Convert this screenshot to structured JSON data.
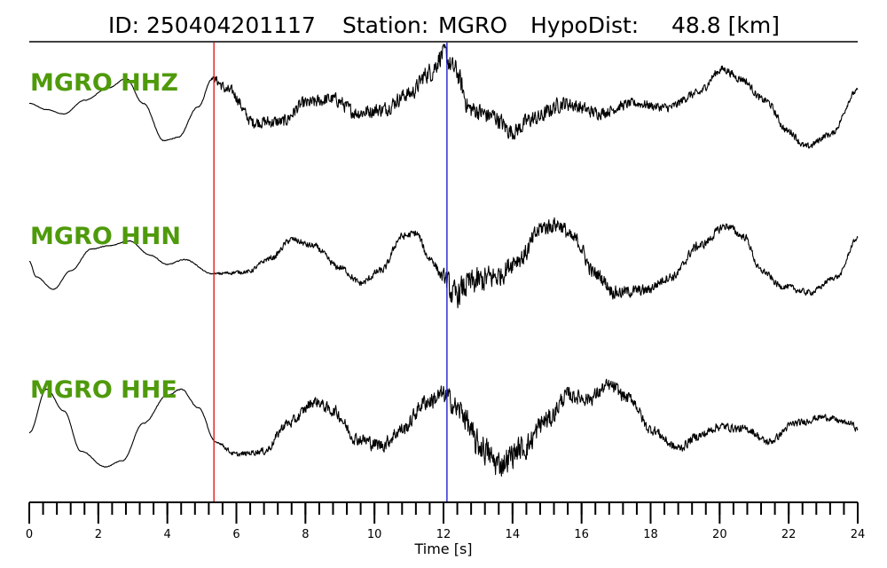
{
  "colors": {
    "trace": "#000000",
    "label": "#4f9a0b",
    "p_pick": "#e31a1c",
    "s_pick": "#1f1fd0"
  },
  "chart_data": {
    "type": "line",
    "title": {
      "id_label": "ID:",
      "id_value": "250404201117",
      "station_label": "Station:",
      "station_value": "MGRO",
      "dist_label": "HypoDist:",
      "dist_value": "48.8 [km]"
    },
    "xlabel": "Time [s]",
    "xlim": [
      0,
      24
    ],
    "xticks": [
      0,
      2,
      4,
      6,
      8,
      10,
      12,
      14,
      16,
      18,
      20,
      22,
      24
    ],
    "minor_tick_step": 0.4,
    "grid": false,
    "picks": [
      {
        "name": "P",
        "time": 5.35,
        "color": "#e31a1c"
      },
      {
        "name": "S",
        "time": 12.1,
        "color": "#1f1fd0"
      }
    ],
    "series": [
      {
        "name": "MGRO HHZ",
        "color": "#000000",
        "trend": [
          [
            0,
            0.05
          ],
          [
            0.5,
            -0.05
          ],
          [
            1.0,
            -0.12
          ],
          [
            1.6,
            0.1
          ],
          [
            2.3,
            0.3
          ],
          [
            2.8,
            0.45
          ],
          [
            3.3,
            0.05
          ],
          [
            3.9,
            -0.55
          ],
          [
            4.3,
            -0.5
          ],
          [
            4.9,
            0.0
          ],
          [
            5.3,
            0.45
          ],
          [
            5.8,
            0.25
          ],
          [
            6.5,
            -0.25
          ],
          [
            7.3,
            -0.25
          ],
          [
            8.0,
            0.05
          ],
          [
            8.8,
            0.12
          ],
          [
            9.5,
            -0.1
          ],
          [
            10.2,
            -0.05
          ],
          [
            11.0,
            0.2
          ],
          [
            11.6,
            0.55
          ],
          [
            12.0,
            0.85
          ],
          [
            12.3,
            0.6
          ],
          [
            12.8,
            -0.05
          ],
          [
            13.4,
            -0.15
          ],
          [
            14.0,
            -0.4
          ],
          [
            14.6,
            -0.2
          ],
          [
            15.5,
            0.05
          ],
          [
            16.5,
            -0.1
          ],
          [
            17.5,
            0.05
          ],
          [
            18.5,
            -0.02
          ],
          [
            19.3,
            0.2
          ],
          [
            20.1,
            0.6
          ],
          [
            20.6,
            0.45
          ],
          [
            21.3,
            0.1
          ],
          [
            22.0,
            -0.4
          ],
          [
            22.5,
            -0.65
          ],
          [
            23.2,
            -0.45
          ],
          [
            24,
            0.25
          ]
        ],
        "noise": [
          [
            0,
            0.005
          ],
          [
            5.2,
            0.01
          ],
          [
            5.5,
            0.12
          ],
          [
            7.5,
            0.14
          ],
          [
            11.0,
            0.16
          ],
          [
            11.8,
            0.22
          ],
          [
            12.3,
            0.24
          ],
          [
            13.0,
            0.2
          ],
          [
            14.5,
            0.18
          ],
          [
            18.0,
            0.1
          ],
          [
            22.0,
            0.08
          ],
          [
            24,
            0.06
          ]
        ]
      },
      {
        "name": "MGRO HHN",
        "color": "#000000",
        "trend": [
          [
            0,
            0.05
          ],
          [
            0.2,
            -0.2
          ],
          [
            0.7,
            -0.4
          ],
          [
            1.2,
            -0.1
          ],
          [
            1.8,
            0.25
          ],
          [
            2.3,
            0.3
          ],
          [
            2.9,
            0.38
          ],
          [
            3.5,
            0.15
          ],
          [
            4.0,
            0.0
          ],
          [
            4.5,
            0.08
          ],
          [
            5.3,
            -0.15
          ],
          [
            6.3,
            -0.12
          ],
          [
            7.0,
            0.1
          ],
          [
            7.6,
            0.4
          ],
          [
            8.2,
            0.3
          ],
          [
            9.0,
            -0.05
          ],
          [
            9.6,
            -0.3
          ],
          [
            10.2,
            -0.1
          ],
          [
            10.8,
            0.45
          ],
          [
            11.2,
            0.5
          ],
          [
            11.6,
            0.1
          ],
          [
            12.0,
            -0.2
          ],
          [
            12.3,
            -0.5
          ],
          [
            12.8,
            -0.3
          ],
          [
            13.5,
            -0.2
          ],
          [
            14.2,
            0.1
          ],
          [
            14.9,
            0.6
          ],
          [
            15.3,
            0.65
          ],
          [
            15.8,
            0.4
          ],
          [
            16.4,
            -0.15
          ],
          [
            17.0,
            -0.45
          ],
          [
            17.8,
            -0.42
          ],
          [
            18.6,
            -0.2
          ],
          [
            19.4,
            0.3
          ],
          [
            20.2,
            0.62
          ],
          [
            20.7,
            0.45
          ],
          [
            21.2,
            -0.1
          ],
          [
            21.8,
            -0.35
          ],
          [
            22.6,
            -0.45
          ],
          [
            23.4,
            -0.2
          ],
          [
            24,
            0.42
          ]
        ],
        "noise": [
          [
            0,
            0.005
          ],
          [
            5.3,
            0.01
          ],
          [
            5.6,
            0.04
          ],
          [
            8.0,
            0.07
          ],
          [
            11.0,
            0.08
          ],
          [
            11.9,
            0.1
          ],
          [
            12.2,
            0.3
          ],
          [
            13.0,
            0.3
          ],
          [
            14.0,
            0.22
          ],
          [
            16.0,
            0.16
          ],
          [
            19.0,
            0.1
          ],
          [
            22.0,
            0.07
          ],
          [
            24,
            0.05
          ]
        ]
      },
      {
        "name": "MGRO HHE",
        "color": "#000000",
        "trend": [
          [
            0,
            -0.25
          ],
          [
            0.5,
            0.45
          ],
          [
            1.0,
            0.1
          ],
          [
            1.5,
            -0.55
          ],
          [
            2.2,
            -0.8
          ],
          [
            2.7,
            -0.7
          ],
          [
            3.3,
            -0.1
          ],
          [
            4.0,
            0.35
          ],
          [
            4.4,
            0.45
          ],
          [
            4.9,
            0.15
          ],
          [
            5.4,
            -0.4
          ],
          [
            6.0,
            -0.6
          ],
          [
            6.8,
            -0.55
          ],
          [
            7.5,
            -0.1
          ],
          [
            8.3,
            0.25
          ],
          [
            8.8,
            0.1
          ],
          [
            9.5,
            -0.35
          ],
          [
            10.2,
            -0.45
          ],
          [
            10.8,
            -0.2
          ],
          [
            11.5,
            0.25
          ],
          [
            12.0,
            0.35
          ],
          [
            12.5,
            0.1
          ],
          [
            13.0,
            -0.45
          ],
          [
            13.6,
            -0.75
          ],
          [
            14.3,
            -0.5
          ],
          [
            15.0,
            -0.05
          ],
          [
            15.6,
            0.35
          ],
          [
            16.2,
            0.3
          ],
          [
            16.8,
            0.5
          ],
          [
            17.4,
            0.3
          ],
          [
            18.0,
            -0.2
          ],
          [
            18.8,
            -0.5
          ],
          [
            19.4,
            -0.3
          ],
          [
            20.0,
            -0.15
          ],
          [
            20.8,
            -0.2
          ],
          [
            21.4,
            -0.4
          ],
          [
            22.2,
            -0.1
          ],
          [
            23.0,
            0.0
          ],
          [
            23.8,
            -0.1
          ],
          [
            24,
            -0.2
          ]
        ],
        "noise": [
          [
            0,
            0.005
          ],
          [
            5.3,
            0.01
          ],
          [
            5.8,
            0.05
          ],
          [
            8.0,
            0.12
          ],
          [
            11.0,
            0.16
          ],
          [
            12.0,
            0.22
          ],
          [
            13.0,
            0.32
          ],
          [
            14.2,
            0.28
          ],
          [
            16.0,
            0.16
          ],
          [
            19.0,
            0.1
          ],
          [
            22.0,
            0.08
          ],
          [
            24,
            0.06
          ]
        ]
      }
    ]
  }
}
